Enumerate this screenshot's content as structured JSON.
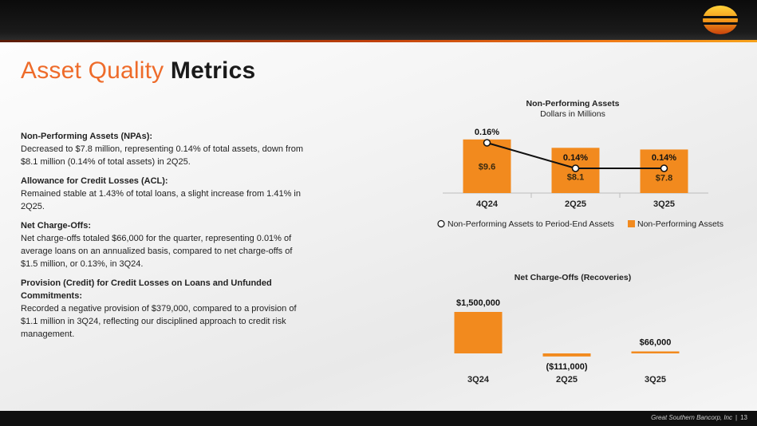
{
  "header": {
    "title_part1": "Asset Quality",
    "title_part2": "Metrics"
  },
  "sections": [
    {
      "heading": "Non-Performing Assets (NPAs):",
      "text": "Decreased to $7.8 million, representing 0.14% of total assets, down from $8.1 million (0.14% of total assets) in 2Q25."
    },
    {
      "heading": "Allowance for Credit Losses (ACL):",
      "text": "Remained stable at 1.43% of total loans, a slight increase from 1.41% in 2Q25."
    },
    {
      "heading": "Net Charge-Offs:",
      "text": "Net charge-offs totaled $66,000 for the quarter, representing 0.01% of average loans on an annualized basis, compared to net charge-offs of $1.5 million, or 0.13%, in 3Q24."
    },
    {
      "heading": "Provision (Credit) for Credit Losses on Loans and Unfunded Commitments:",
      "text": "Recorded a negative provision of $379,000, compared to a provision of $1.1 million in 3Q24, reflecting our disciplined approach to credit risk management."
    }
  ],
  "chart_data": [
    {
      "type": "bar",
      "title": "Non-Performing Assets",
      "subtitle": "Dollars in Millions",
      "categories": [
        "4Q24",
        "2Q25",
        "3Q25"
      ],
      "series": [
        {
          "name": "Non-Performing Assets",
          "type": "bar",
          "values": [
            9.6,
            8.1,
            7.8
          ],
          "labels": [
            "$9.6",
            "$8.1",
            "$7.8"
          ],
          "color": "#f28a1e"
        },
        {
          "name": "Non-Performing Assets to Period-End Assets",
          "type": "line",
          "values": [
            0.16,
            0.14,
            0.14
          ],
          "labels": [
            "0.16%",
            "0.14%",
            "0.14%"
          ],
          "color": "#111111"
        }
      ],
      "legend_position": "bottom",
      "grid": false
    },
    {
      "type": "bar",
      "title": "Net Charge-Offs (Recoveries)",
      "categories": [
        "3Q24",
        "2Q25",
        "3Q25"
      ],
      "values": [
        1500000,
        -111000,
        66000
      ],
      "labels": [
        "$1,500,000",
        "($111,000)",
        "$66,000"
      ],
      "color": "#f28a1e",
      "grid": false
    }
  ],
  "footer": {
    "company": "Great Southern Bancorp, Inc",
    "separator": "|",
    "page": "13"
  },
  "colors": {
    "accent": "#ee6b2a",
    "bar": "#f28a1e"
  }
}
